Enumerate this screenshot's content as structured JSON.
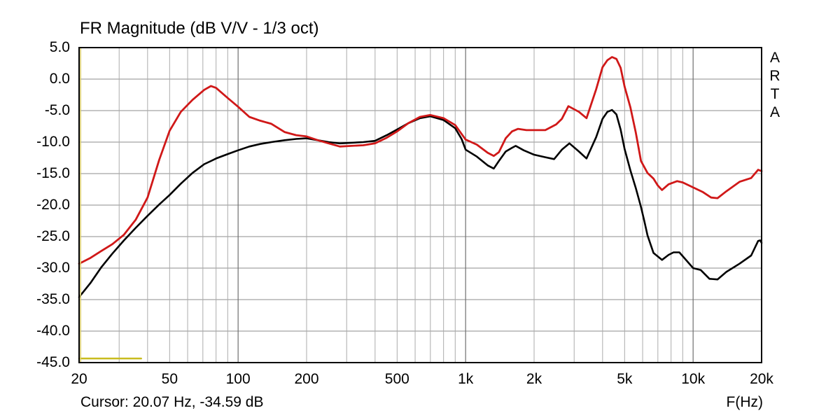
{
  "title": "FR Magnitude (dB V/V - 1/3 oct)",
  "watermark": "ARTA",
  "cursor_readout": "Cursor: 20.07 Hz, -34.59 dB",
  "x_axis_label": "F(Hz)",
  "chart_data": {
    "type": "line",
    "title": "FR Magnitude (dB V/V - 1/3 oct)",
    "xlabel": "F(Hz)",
    "ylabel": "dB V/V",
    "x_scale": "log",
    "xlim": [
      20,
      20000
    ],
    "ylim": [
      -45,
      5
    ],
    "grid": true,
    "legend": "none",
    "x_ticks": [
      {
        "f": 20,
        "label": "20"
      },
      {
        "f": 50,
        "label": "50"
      },
      {
        "f": 100,
        "label": "100"
      },
      {
        "f": 200,
        "label": "200"
      },
      {
        "f": 500,
        "label": "500"
      },
      {
        "f": 1000,
        "label": "1k"
      },
      {
        "f": 2000,
        "label": "2k"
      },
      {
        "f": 5000,
        "label": "5k"
      },
      {
        "f": 10000,
        "label": "10k"
      },
      {
        "f": 20000,
        "label": "20k"
      }
    ],
    "y_ticks": [
      {
        "db": 5,
        "label": "5.0"
      },
      {
        "db": 0,
        "label": "0.0"
      },
      {
        "db": -5,
        "label": "-5.0"
      },
      {
        "db": -10,
        "label": "-10.0"
      },
      {
        "db": -15,
        "label": "-15.0"
      },
      {
        "db": -20,
        "label": "-20.0"
      },
      {
        "db": -25,
        "label": "-25.0"
      },
      {
        "db": -30,
        "label": "-30.0"
      },
      {
        "db": -35,
        "label": "-35.0"
      },
      {
        "db": -40,
        "label": "-40.0"
      },
      {
        "db": -45,
        "label": "-45.0"
      }
    ],
    "x_grid_minor": [
      30,
      40,
      50,
      60,
      70,
      80,
      90,
      200,
      300,
      400,
      500,
      600,
      700,
      800,
      900,
      2000,
      3000,
      4000,
      5000,
      6000,
      7000,
      8000,
      9000
    ],
    "x_grid_major": [
      100,
      1000,
      10000
    ],
    "y_grid": [
      0,
      -5,
      -10,
      -15,
      -20,
      -25,
      -30,
      -35,
      -40
    ],
    "cursor": {
      "f": 20.07,
      "db": -34.59
    },
    "colors": {
      "grid_minor": "#ababab",
      "grid_major": "#6f6f6f",
      "grid_horizontal": "#8d8d8d",
      "border": "#000000",
      "cursor_line": "#d9cd6e",
      "background": "#ffffff"
    },
    "series": [
      {
        "name": "marker-yellow",
        "color": "#c9bc1e",
        "width": 2.5,
        "points": [
          [
            20,
            -44.35
          ],
          [
            37.5,
            -44.35
          ]
        ]
      },
      {
        "name": "curve-black",
        "color": "#000000",
        "width": 2.6,
        "points": [
          [
            20,
            -34.6
          ],
          [
            22.4,
            -32.4
          ],
          [
            25,
            -29.9
          ],
          [
            28,
            -27.7
          ],
          [
            31.5,
            -25.6
          ],
          [
            35.5,
            -23.6
          ],
          [
            40,
            -21.7
          ],
          [
            45,
            -19.9
          ],
          [
            50,
            -18.4
          ],
          [
            56,
            -16.6
          ],
          [
            63,
            -14.9
          ],
          [
            71,
            -13.5
          ],
          [
            76,
            -13.0
          ],
          [
            80,
            -12.6
          ],
          [
            90,
            -11.9
          ],
          [
            100,
            -11.3
          ],
          [
            112,
            -10.7
          ],
          [
            125,
            -10.3
          ],
          [
            140,
            -10.0
          ],
          [
            160,
            -9.7
          ],
          [
            180,
            -9.5
          ],
          [
            200,
            -9.4
          ],
          [
            224,
            -9.7
          ],
          [
            250,
            -10.0
          ],
          [
            280,
            -10.2
          ],
          [
            315,
            -10.1
          ],
          [
            355,
            -10.0
          ],
          [
            400,
            -9.8
          ],
          [
            450,
            -8.9
          ],
          [
            500,
            -8.0
          ],
          [
            560,
            -7.0
          ],
          [
            630,
            -6.2
          ],
          [
            700,
            -5.9
          ],
          [
            800,
            -6.5
          ],
          [
            900,
            -7.8
          ],
          [
            960,
            -9.5
          ],
          [
            1000,
            -11.2
          ],
          [
            1120,
            -12.3
          ],
          [
            1250,
            -13.7
          ],
          [
            1330,
            -14.2
          ],
          [
            1400,
            -13.0
          ],
          [
            1500,
            -11.5
          ],
          [
            1600,
            -10.9
          ],
          [
            1660,
            -10.6
          ],
          [
            1800,
            -11.3
          ],
          [
            2000,
            -12.0
          ],
          [
            2240,
            -12.4
          ],
          [
            2450,
            -12.7
          ],
          [
            2650,
            -11.2
          ],
          [
            2860,
            -10.2
          ],
          [
            3150,
            -11.5
          ],
          [
            3400,
            -12.6
          ],
          [
            3750,
            -9.2
          ],
          [
            4000,
            -6.3
          ],
          [
            4200,
            -5.2
          ],
          [
            4400,
            -4.9
          ],
          [
            4600,
            -5.6
          ],
          [
            4800,
            -8.0
          ],
          [
            5000,
            -11.1
          ],
          [
            5300,
            -14.5
          ],
          [
            5600,
            -17.3
          ],
          [
            5900,
            -20.3
          ],
          [
            6100,
            -22.5
          ],
          [
            6300,
            -24.8
          ],
          [
            6700,
            -27.6
          ],
          [
            7300,
            -28.7
          ],
          [
            7800,
            -27.9
          ],
          [
            8200,
            -27.5
          ],
          [
            8700,
            -27.5
          ],
          [
            9200,
            -28.5
          ],
          [
            10000,
            -30.0
          ],
          [
            10800,
            -30.3
          ],
          [
            11800,
            -31.7
          ],
          [
            12800,
            -31.8
          ],
          [
            14000,
            -30.6
          ],
          [
            16000,
            -29.3
          ],
          [
            18000,
            -28.0
          ],
          [
            19300,
            -25.7
          ],
          [
            19700,
            -25.6
          ],
          [
            20000,
            -26.0
          ]
        ]
      },
      {
        "name": "curve-red",
        "color": "#d01818",
        "width": 2.8,
        "points": [
          [
            20,
            -29.3
          ],
          [
            22.4,
            -28.4
          ],
          [
            25,
            -27.3
          ],
          [
            28,
            -26.2
          ],
          [
            31.5,
            -24.7
          ],
          [
            35.5,
            -22.3
          ],
          [
            40,
            -18.8
          ],
          [
            45,
            -12.8
          ],
          [
            50,
            -8.2
          ],
          [
            56,
            -5.2
          ],
          [
            63,
            -3.3
          ],
          [
            71,
            -1.7
          ],
          [
            76,
            -1.1
          ],
          [
            80,
            -1.4
          ],
          [
            90,
            -3.0
          ],
          [
            100,
            -4.4
          ],
          [
            112,
            -6.0
          ],
          [
            125,
            -6.6
          ],
          [
            140,
            -7.1
          ],
          [
            160,
            -8.4
          ],
          [
            180,
            -8.9
          ],
          [
            200,
            -9.1
          ],
          [
            224,
            -9.7
          ],
          [
            250,
            -10.2
          ],
          [
            280,
            -10.7
          ],
          [
            315,
            -10.6
          ],
          [
            355,
            -10.5
          ],
          [
            400,
            -10.2
          ],
          [
            450,
            -9.3
          ],
          [
            500,
            -8.3
          ],
          [
            560,
            -7.0
          ],
          [
            630,
            -6.0
          ],
          [
            700,
            -5.7
          ],
          [
            800,
            -6.2
          ],
          [
            900,
            -7.3
          ],
          [
            1000,
            -9.6
          ],
          [
            1120,
            -10.4
          ],
          [
            1250,
            -11.7
          ],
          [
            1330,
            -12.2
          ],
          [
            1400,
            -11.6
          ],
          [
            1500,
            -9.4
          ],
          [
            1600,
            -8.3
          ],
          [
            1700,
            -7.9
          ],
          [
            1850,
            -8.1
          ],
          [
            2000,
            -8.1
          ],
          [
            2240,
            -8.1
          ],
          [
            2500,
            -7.2
          ],
          [
            2650,
            -6.3
          ],
          [
            2830,
            -4.3
          ],
          [
            3150,
            -5.2
          ],
          [
            3400,
            -6.2
          ],
          [
            3750,
            -1.6
          ],
          [
            4000,
            1.9
          ],
          [
            4200,
            3.0
          ],
          [
            4400,
            3.5
          ],
          [
            4600,
            3.2
          ],
          [
            4800,
            1.8
          ],
          [
            5000,
            -1.2
          ],
          [
            5300,
            -4.5
          ],
          [
            5600,
            -8.5
          ],
          [
            5900,
            -13.0
          ],
          [
            6300,
            -14.9
          ],
          [
            6700,
            -15.8
          ],
          [
            7000,
            -16.9
          ],
          [
            7300,
            -17.6
          ],
          [
            7800,
            -16.7
          ],
          [
            8500,
            -16.2
          ],
          [
            9000,
            -16.4
          ],
          [
            10000,
            -17.2
          ],
          [
            11000,
            -17.9
          ],
          [
            12000,
            -18.8
          ],
          [
            12800,
            -18.9
          ],
          [
            14000,
            -17.8
          ],
          [
            16000,
            -16.3
          ],
          [
            18000,
            -15.7
          ],
          [
            19300,
            -14.4
          ],
          [
            20000,
            -14.6
          ]
        ]
      }
    ]
  }
}
